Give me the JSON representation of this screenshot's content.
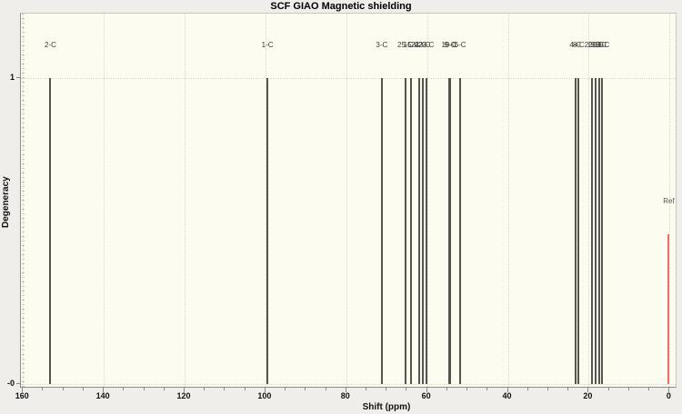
{
  "window": {
    "title": "SCF GIAO Magnetic shielding"
  },
  "chart_data": {
    "type": "bar",
    "style": "stem-spectrum",
    "title": "SCF GIAO Magnetic shielding",
    "xlabel": "Shift (ppm)",
    "ylabel": "Degeneracy",
    "x_axis_reversed": true,
    "xlim": [
      160.5,
      -1.5
    ],
    "ylim": [
      -0.01,
      1.21
    ],
    "x_major_ticks": [
      160,
      140,
      120,
      100,
      80,
      60,
      40,
      20,
      0
    ],
    "x_minor_tick_step": 5,
    "y_ticks": [
      {
        "value": 1,
        "label": "1"
      },
      {
        "value": 0,
        "label": "-0"
      }
    ],
    "grid": "dotted",
    "legend": "none",
    "peaks": [
      {
        "label": "2-C",
        "shift_ppm": 153.2,
        "degeneracy": 1
      },
      {
        "label": "1-C",
        "shift_ppm": 99.5,
        "degeneracy": 1
      },
      {
        "label": "3-C",
        "shift_ppm": 71.2,
        "degeneracy": 1
      },
      {
        "label": "25-C",
        "shift_ppm": 65.4,
        "degeneracy": 1
      },
      {
        "label": "15-C",
        "shift_ppm": 63.9,
        "degeneracy": 1
      },
      {
        "label": "24-C",
        "shift_ppm": 62.0,
        "degeneracy": 1
      },
      {
        "label": "22-C",
        "shift_ppm": 61.1,
        "degeneracy": 1
      },
      {
        "label": "23-C",
        "shift_ppm": 60.2,
        "degeneracy": 1
      },
      {
        "label": "19-C",
        "shift_ppm": 54.5,
        "degeneracy": 1
      },
      {
        "label": "9-C",
        "shift_ppm": 54.3,
        "degeneracy": 1
      },
      {
        "label": "6-C",
        "shift_ppm": 51.8,
        "degeneracy": 1
      },
      {
        "label": "4-C",
        "shift_ppm": 23.3,
        "degeneracy": 1
      },
      {
        "label": "8-C",
        "shift_ppm": 22.5,
        "degeneracy": 1
      },
      {
        "label": "20-C",
        "shift_ppm": 19.1,
        "degeneracy": 1
      },
      {
        "label": "21-C",
        "shift_ppm": 18.2,
        "degeneracy": 1
      },
      {
        "label": "16-C",
        "shift_ppm": 17.5,
        "degeneracy": 1
      },
      {
        "label": "18-C",
        "shift_ppm": 16.8,
        "degeneracy": 1
      }
    ],
    "reference": {
      "label": "Ref",
      "shift_ppm": 0.2,
      "height": 0.49
    }
  },
  "colors": {
    "background": "#efeeeb",
    "plot_background": "#fdfcf0",
    "grid": "#d8d7c8",
    "axis": "#8b8a84",
    "border": "#c9c8bf",
    "stick": "#55554f",
    "reference_stick": "#f26d6d",
    "text": "#111111",
    "peak_label_text": "#3a3a38"
  }
}
